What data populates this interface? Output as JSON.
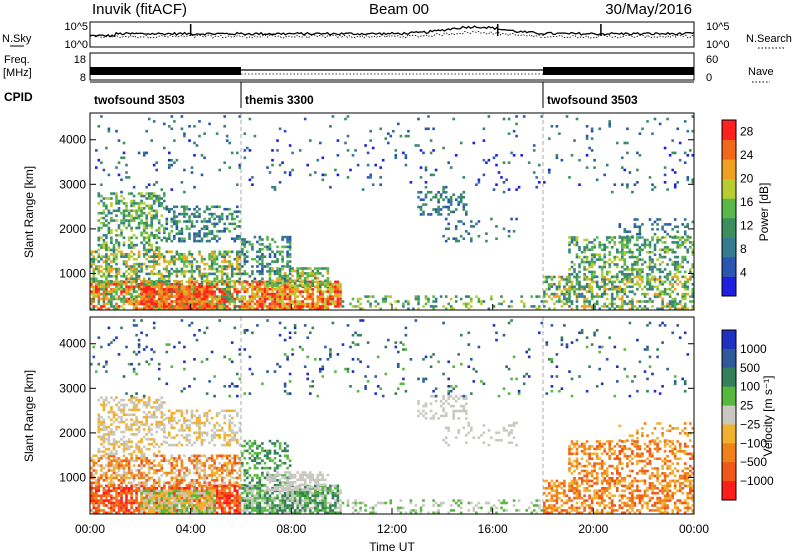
{
  "header": {
    "station": "Inuvik (fitACF)",
    "beam": "Beam 00",
    "date": "30/May/2016"
  },
  "top_panels": {
    "nsky_label": "N.Sky",
    "nsearch_label": "N.Search",
    "freq_label_1": "Freq.",
    "freq_label_2": "[MHz]",
    "nave_label": "Nave",
    "cpid_label": "CPID",
    "nsky_ticks": [
      "10^5",
      "10^0"
    ],
    "nsearch_ticks": [
      "10^5",
      "10^0"
    ],
    "freq_ticks": [
      "18",
      "8"
    ],
    "nave_ticks": [
      "60",
      "0"
    ]
  },
  "cpid_segments": [
    {
      "label": "twofsound 3503",
      "start_hour": 0,
      "end_hour": 6
    },
    {
      "label": "themis 3300",
      "start_hour": 6,
      "end_hour": 18
    },
    {
      "label": "twofsound 3503",
      "start_hour": 18,
      "end_hour": 24
    }
  ],
  "colors": {
    "power": [
      "#1f1fe0",
      "#2a55b0",
      "#347a90",
      "#3a8f5c",
      "#58b84a",
      "#b8cc30",
      "#f0a020",
      "#f06818",
      "#ff2020"
    ],
    "velocity": [
      "#2030c0",
      "#2e5a9c",
      "#347e5a",
      "#56b83e",
      "#c8c8c0",
      "#f0b030",
      "#f08018",
      "#f05818",
      "#ff1c1c"
    ]
  },
  "chart_data": [
    {
      "type": "heatmap",
      "panel": "power",
      "ylabel": "Slant Range [km]",
      "yticks": [
        1000,
        2000,
        3000,
        4000
      ],
      "ylim": [
        180,
        4600
      ],
      "xlim": [
        0,
        24
      ],
      "colorbar_label": "Power [dB]",
      "colorbar_ticks": [
        4,
        8,
        12,
        16,
        20,
        24,
        28
      ],
      "colorbar_range": [
        0,
        30
      ]
    },
    {
      "type": "heatmap",
      "panel": "velocity",
      "ylabel": "Slant Range [km]",
      "yticks": [
        1000,
        2000,
        3000,
        4000
      ],
      "ylim": [
        180,
        4600
      ],
      "xlim": [
        0,
        24
      ],
      "xlabel": "Time UT",
      "xticks": [
        "00:00",
        "04:00",
        "08:00",
        "12:00",
        "16:00",
        "20:00",
        "00:00"
      ],
      "colorbar_label": "Velocity [m s⁻¹]",
      "colorbar_ticks": [
        "1000",
        "500",
        "100",
        "25",
        "−25",
        "−100",
        "−500",
        "−1000"
      ]
    }
  ]
}
